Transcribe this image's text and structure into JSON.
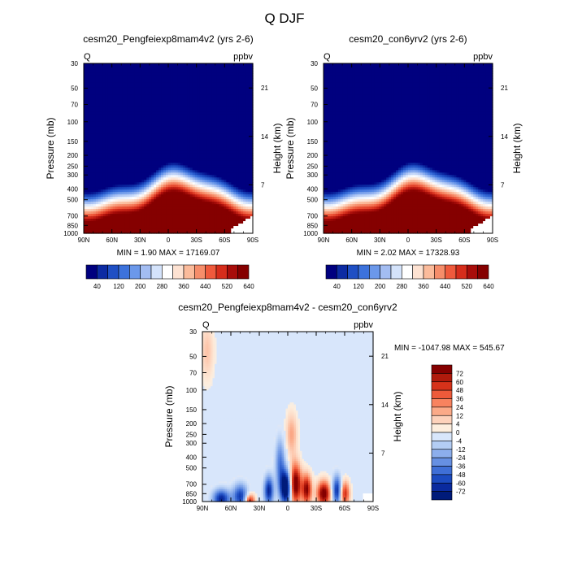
{
  "title": "Q DJF",
  "chart_data": [
    {
      "type": "contour",
      "panel": "top-left",
      "title": "cesm20_Pengfeiexp8mam4v2 (yrs 2-6)",
      "corner_left": "Q",
      "corner_right": "ppbv",
      "ylabel": "Pressure (mb)",
      "ylabel_right": "Height (km)",
      "x_ticks": [
        "90N",
        "60N",
        "30N",
        "0",
        "30S",
        "60S",
        "90S"
      ],
      "y_ticks": [
        "30",
        "50",
        "70",
        "100",
        "150",
        "200",
        "250",
        "300",
        "400",
        "500",
        "700",
        "850",
        "1000"
      ],
      "height_ticks": [
        "21",
        "14",
        "7"
      ],
      "stats": "MIN =    1.90  MAX = 17169.07",
      "levels": [
        "40",
        "120",
        "200",
        "280",
        "360",
        "440",
        "520",
        "640"
      ]
    },
    {
      "type": "contour",
      "panel": "top-right",
      "title": "cesm20_con6yrv2 (yrs 2-6)",
      "corner_left": "Q",
      "corner_right": "ppbv",
      "ylabel": "Pressure (mb)",
      "ylabel_right": "Height (km)",
      "x_ticks": [
        "90N",
        "60N",
        "30N",
        "0",
        "30S",
        "60S",
        "90S"
      ],
      "y_ticks": [
        "30",
        "50",
        "70",
        "100",
        "150",
        "200",
        "250",
        "300",
        "400",
        "500",
        "700",
        "850",
        "1000"
      ],
      "height_ticks": [
        "21",
        "14",
        "7"
      ],
      "stats": "MIN =    2.02  MAX = 17328.93",
      "levels": [
        "40",
        "120",
        "200",
        "280",
        "360",
        "440",
        "520",
        "640"
      ]
    },
    {
      "type": "contour",
      "panel": "bottom-difference",
      "title": "cesm20_Pengfeiexp8mam4v2 - cesm20_con6yrv2",
      "corner_left": "Q",
      "corner_right": "ppbv",
      "ylabel": "Pressure (mb)",
      "ylabel_right": "Height (km)",
      "x_ticks": [
        "90N",
        "60N",
        "30N",
        "0",
        "30S",
        "60S",
        "90S"
      ],
      "y_ticks": [
        "30",
        "50",
        "70",
        "100",
        "150",
        "200",
        "250",
        "300",
        "400",
        "500",
        "700",
        "850",
        "1000"
      ],
      "height_ticks": [
        "21",
        "14",
        "7"
      ],
      "stats": "MIN = -1047.98  MAX = 545.67",
      "levels": [
        "72",
        "60",
        "48",
        "36",
        "24",
        "12",
        "4",
        "0",
        "-4",
        "-12",
        "-24",
        "-36",
        "-48",
        "-60",
        "-72"
      ]
    }
  ],
  "colors": {
    "abs_scale": [
      "#00007f",
      "#0c2ba3",
      "#1f4fc4",
      "#3c72dc",
      "#6b98ea",
      "#a3bdf2",
      "#d4e3fb",
      "#ffffff",
      "#fde2d2",
      "#fbbb9b",
      "#f68d6a",
      "#ef5a3c",
      "#d62d1b",
      "#a80d0a",
      "#850000"
    ],
    "diff_scale": [
      "#850000",
      "#b01a0c",
      "#d6321a",
      "#ee5a3a",
      "#f8835f",
      "#fbaa88",
      "#fdd2bb",
      "#fdeede",
      "#d8e6fb",
      "#b3cdf4",
      "#8caeec",
      "#6690e2",
      "#3f6fd6",
      "#1c4bc0",
      "#0a2a9e",
      "#001b7a"
    ]
  }
}
